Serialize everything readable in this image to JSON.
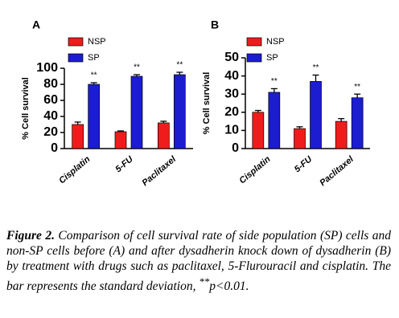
{
  "chart_data": [
    {
      "type": "bar",
      "panel": "A",
      "ylabel": "% Cell survival",
      "categories": [
        "Cisplatin",
        "5-FU",
        "Paclitaxel"
      ],
      "series": [
        {
          "name": "NSP",
          "color": "#f01c1c",
          "values": [
            30,
            21,
            32
          ],
          "errors": [
            3,
            1,
            2
          ]
        },
        {
          "name": "SP",
          "color": "#1c1cd0",
          "values": [
            80,
            90,
            92
          ],
          "errors": [
            2,
            2,
            3
          ]
        }
      ],
      "annotations": [
        "**",
        "**",
        "**"
      ],
      "ylim": [
        0,
        100
      ],
      "yticks": [
        0,
        20,
        40,
        60,
        80,
        100
      ],
      "grid": false
    },
    {
      "type": "bar",
      "panel": "B",
      "ylabel": "% Cell survival",
      "categories": [
        "Cisplatin",
        "5-FU",
        "Paclitaxel"
      ],
      "series": [
        {
          "name": "NSP",
          "color": "#f01c1c",
          "values": [
            20,
            11,
            15
          ],
          "errors": [
            1,
            1,
            1.5
          ]
        },
        {
          "name": "SP",
          "color": "#1c1cd0",
          "values": [
            31,
            37,
            28
          ],
          "errors": [
            2,
            3.5,
            2
          ]
        }
      ],
      "annotations": [
        "**",
        "**",
        "**"
      ],
      "ylim": [
        0,
        50
      ],
      "yticks": [
        0,
        10,
        20,
        30,
        40,
        50
      ],
      "grid": false
    }
  ],
  "caption": {
    "label": "Figure 2.",
    "text": "Comparison of cell survival rate of side population (SP) cells and non-SP cells before (A) and after dysadherin knock down of dysadherin (B) by treatment with drugs such as paclitaxel, 5-Flurouracil and cisplatin. The bar represents the standard deviation,",
    "sup": "**",
    "end": "p<0.01."
  }
}
